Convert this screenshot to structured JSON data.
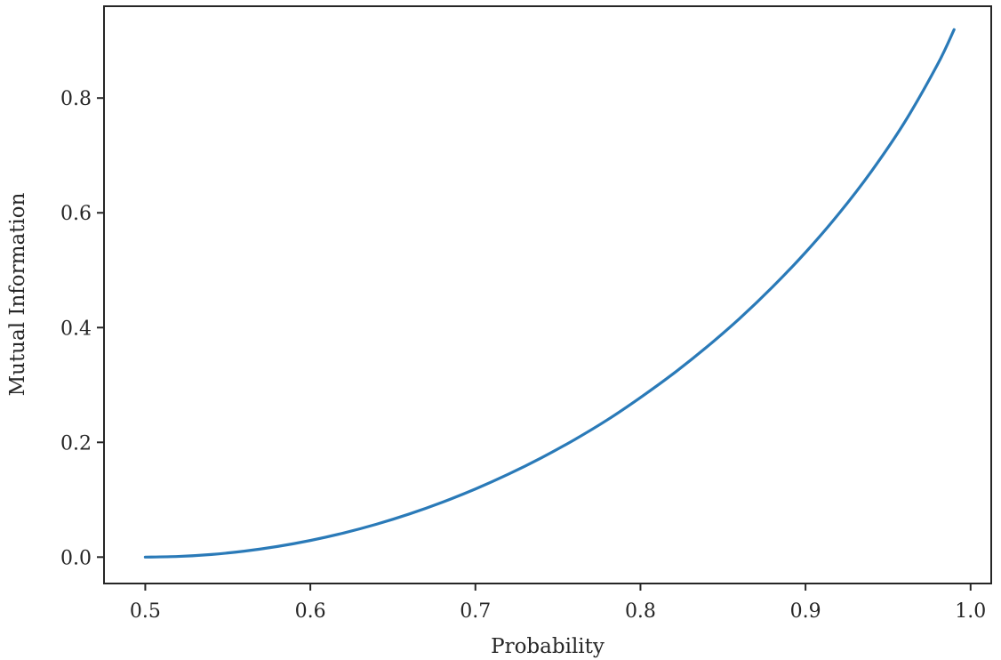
{
  "chart_data": {
    "type": "line",
    "title": "",
    "xlabel": "Probability",
    "ylabel": "Mutual Information",
    "xlim": [
      0.475,
      1.0125
    ],
    "ylim": [
      -0.046,
      0.96
    ],
    "xticks": [
      0.5,
      0.6,
      0.7,
      0.8,
      0.9,
      1.0
    ],
    "xtick_labels": [
      "0.5",
      "0.6",
      "0.7",
      "0.8",
      "0.9",
      "1.0"
    ],
    "yticks": [
      0.0,
      0.2,
      0.4,
      0.6,
      0.8
    ],
    "ytick_labels": [
      "0.0",
      "0.2",
      "0.4",
      "0.6",
      "0.8"
    ],
    "grid": false,
    "legend": "none",
    "series": [
      {
        "color": "#2a7ab8",
        "x": [
          0.5,
          0.52,
          0.54,
          0.56,
          0.58,
          0.6,
          0.62,
          0.64,
          0.66,
          0.68,
          0.7,
          0.72,
          0.74,
          0.76,
          0.78,
          0.8,
          0.82,
          0.84,
          0.86,
          0.88,
          0.9,
          0.92,
          0.94,
          0.96,
          0.98,
          0.99
        ],
        "y": [
          0.0,
          0.0012,
          0.0046,
          0.0104,
          0.0185,
          0.029,
          0.0419,
          0.0573,
          0.0752,
          0.0957,
          0.1187,
          0.1445,
          0.1731,
          0.2046,
          0.2393,
          0.2781,
          0.3199,
          0.3657,
          0.4156,
          0.4707,
          0.531,
          0.5978,
          0.6726,
          0.7577,
          0.8586,
          0.9192
        ]
      }
    ]
  }
}
